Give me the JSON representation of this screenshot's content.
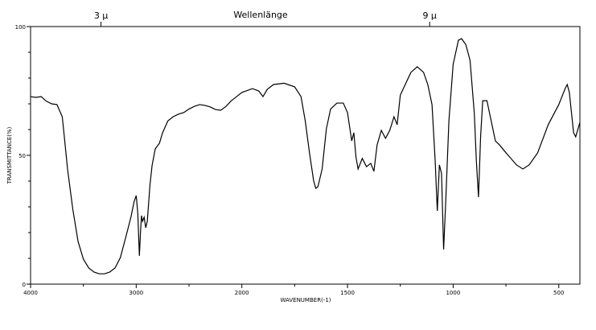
{
  "chart_data": {
    "type": "line",
    "title": "Wellenlänge",
    "x_label": "WAVENUMBER(-1)",
    "y_label": "TRANSMITTANCE(%)",
    "xlim": [
      4000,
      400
    ],
    "xscale_break": 2000,
    "xscale_ratio": 2,
    "xticks": [
      4000,
      3000,
      2000,
      1500,
      1000,
      500
    ],
    "xminor": [
      3500,
      2500,
      1750,
      1250,
      750
    ],
    "x2ticks": [
      {
        "value": 3,
        "label": "3 µ"
      },
      {
        "value": 9,
        "label": "9 µ"
      }
    ],
    "ylim": [
      0,
      100
    ],
    "yticks": [
      0,
      50,
      100
    ],
    "yminor": [
      10,
      20,
      30,
      40,
      60,
      70,
      80,
      90
    ],
    "series": [
      {
        "color": "#000000",
        "x": [
          4000,
          3950,
          3900,
          3850,
          3800,
          3750,
          3700,
          3680,
          3650,
          3600,
          3550,
          3500,
          3450,
          3400,
          3350,
          3300,
          3250,
          3200,
          3150,
          3100,
          3050,
          3020,
          3000,
          2985,
          2970,
          2960,
          2950,
          2940,
          2925,
          2910,
          2895,
          2870,
          2850,
          2820,
          2780,
          2750,
          2700,
          2650,
          2600,
          2550,
          2500,
          2450,
          2400,
          2350,
          2300,
          2250,
          2200,
          2150,
          2100,
          2050,
          2000,
          1950,
          1920,
          1900,
          1880,
          1850,
          1800,
          1750,
          1720,
          1700,
          1680,
          1660,
          1650,
          1640,
          1620,
          1600,
          1580,
          1550,
          1520,
          1500,
          1480,
          1470,
          1460,
          1450,
          1430,
          1410,
          1390,
          1375,
          1360,
          1340,
          1320,
          1300,
          1280,
          1265,
          1250,
          1200,
          1170,
          1140,
          1120,
          1100,
          1085,
          1075,
          1065,
          1055,
          1045,
          1035,
          1020,
          1000,
          975,
          960,
          940,
          920,
          900,
          890,
          880,
          870,
          860,
          840,
          820,
          800,
          780,
          750,
          700,
          670,
          640,
          600,
          550,
          500,
          470,
          460,
          450,
          430,
          420,
          400
        ],
        "values": [
          72.8,
          72.5,
          72.8,
          71,
          70,
          69.7,
          65,
          57,
          44.7,
          29,
          16.5,
          9.7,
          6.3,
          4.7,
          4,
          4,
          4.7,
          6.3,
          10.3,
          18,
          26,
          32,
          34.4,
          27.5,
          11,
          19.7,
          26.6,
          24.4,
          26,
          21.9,
          24.4,
          38.4,
          46,
          52.5,
          54.7,
          58.8,
          63.4,
          65,
          66,
          66.6,
          68,
          69,
          69.7,
          69.4,
          68.8,
          67.8,
          67.5,
          69,
          71.2,
          72.8,
          74.4,
          75.9,
          75,
          72.8,
          75.6,
          77.5,
          78,
          76.6,
          72.8,
          63.4,
          51,
          40,
          37.2,
          37.8,
          44.7,
          60.3,
          68,
          70.3,
          70.3,
          66.6,
          55.6,
          58.8,
          49.4,
          44.7,
          48.8,
          45.6,
          46.9,
          43.8,
          54,
          59.7,
          56.6,
          59.7,
          65,
          61.9,
          73.4,
          82.2,
          84.4,
          82.2,
          77.5,
          69.7,
          47.8,
          28.4,
          46.3,
          43,
          13.4,
          32.2,
          63.4,
          85.3,
          94.7,
          95.3,
          93,
          86.9,
          66.6,
          47.8,
          33.8,
          57.2,
          71.2,
          71.2,
          63.4,
          55.6,
          54,
          51,
          46.3,
          44.7,
          46.3,
          51,
          61.9,
          69.7,
          75.9,
          77.5,
          74.4,
          58.8,
          57.2,
          62.8
        ]
      }
    ]
  }
}
